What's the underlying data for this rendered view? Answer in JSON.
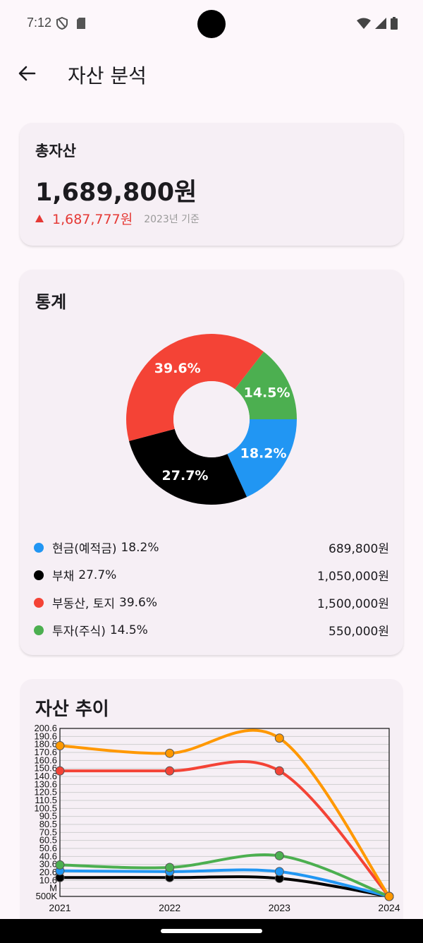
{
  "status_bar": {
    "time": "7:12",
    "icons": [
      "shield-icon",
      "sim-card-icon",
      "wifi-icon",
      "signal-icon",
      "battery-icon"
    ]
  },
  "app_bar": {
    "back_icon": "arrow-back-icon",
    "title": "자산 분석"
  },
  "total_card": {
    "label": "총자산",
    "amount": "1,689,800원",
    "change_amount": "1,687,777원",
    "change_basis": "2023년 기준",
    "change_color": "#e53935"
  },
  "stats_card": {
    "label": "통계",
    "legend": [
      {
        "name": "현금(예적금)",
        "pct": "18.2%",
        "value": "689,800원",
        "color": "#2196f3"
      },
      {
        "name": "부채",
        "pct": "27.7%",
        "value": "1,050,000원",
        "color": "#000000"
      },
      {
        "name": "부동산, 토지",
        "pct": "39.6%",
        "value": "1,500,000원",
        "color": "#f44336"
      },
      {
        "name": "투자(주식)",
        "pct": "14.5%",
        "value": "550,000원",
        "color": "#4caf50"
      }
    ]
  },
  "chart_data": [
    {
      "type": "pie",
      "donut": true,
      "title": "",
      "slices": [
        {
          "label": "18.2%",
          "value": 18.2,
          "color": "#2196f3"
        },
        {
          "label": "27.7%",
          "value": 27.7,
          "color": "#000000"
        },
        {
          "label": "39.6%",
          "value": 39.6,
          "color": "#f44336"
        },
        {
          "label": "14.5%",
          "value": 14.5,
          "color": "#4caf50"
        }
      ]
    },
    {
      "type": "line",
      "title": "자산 추이",
      "categories": [
        "2021",
        "2022",
        "2023",
        "2024"
      ],
      "ylim": [
        0.5,
        200.6
      ],
      "y_tick_labels": [
        "500K",
        "M",
        "10.6",
        "20.6",
        "30.6",
        "40.6",
        "50.6",
        "60.5",
        "70.5",
        "80.5",
        "90.5",
        "100.5",
        "110.5",
        "120.5",
        "130.6",
        "140.6",
        "150.6",
        "160.6",
        "170.6",
        "180.6",
        "190.6",
        "200.6"
      ],
      "grid": true,
      "series": [
        {
          "color": "#ff9800",
          "values": [
            180,
            171,
            189,
            0.5
          ]
        },
        {
          "color": "#f44336",
          "values": [
            150,
            150,
            150,
            0.5
          ]
        },
        {
          "color": "#4caf50",
          "values": [
            38,
            35,
            49,
            0.5
          ]
        },
        {
          "color": "#2196f3",
          "values": [
            31,
            30,
            30,
            0.5
          ]
        },
        {
          "color": "#000000",
          "values": [
            23,
            23,
            22,
            0.5
          ]
        }
      ]
    }
  ]
}
